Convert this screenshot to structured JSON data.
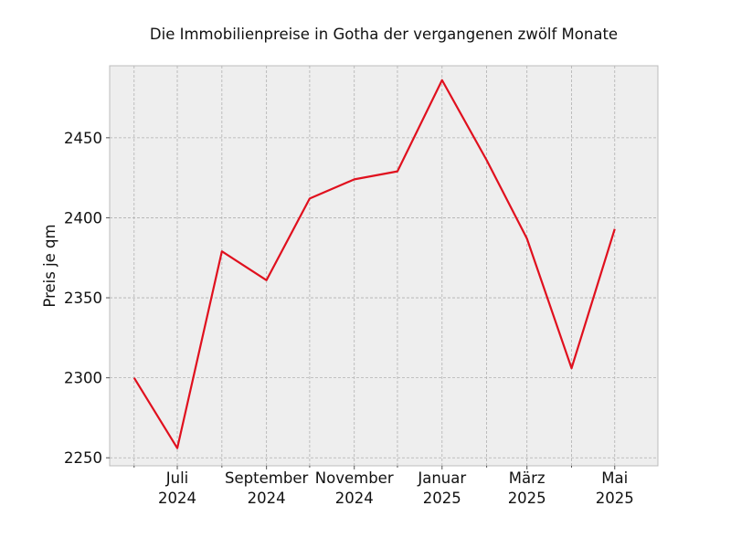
{
  "chart_data": {
    "type": "line",
    "title": "Die Immobilienpreise in Gotha der vergangenen zwölf Monate",
    "xlabel": "",
    "ylabel": "Preis je qm",
    "x": [
      "2024-06",
      "2024-07",
      "2024-08",
      "2024-09",
      "2024-10",
      "2024-11",
      "2024-12",
      "2025-01",
      "2025-02",
      "2025-03",
      "2025-04",
      "2025-05"
    ],
    "series": [
      {
        "values": [
          2300,
          2256,
          2379,
          2361,
          2412,
          2424,
          2429,
          2486,
          2436,
          2387,
          2306,
          2393
        ],
        "color": "#e0101e"
      }
    ],
    "xlim": [
      "2024-05-15",
      "2025-05-31"
    ],
    "ylim": [
      2245,
      2495
    ],
    "y_ticks": [
      2250,
      2300,
      2350,
      2400,
      2450
    ],
    "x_major_ticks": [
      {
        "x": "2024-07",
        "label": [
          "Juli",
          "2024"
        ]
      },
      {
        "x": "2024-09",
        "label": [
          "September",
          "2024"
        ]
      },
      {
        "x": "2024-11",
        "label": [
          "November",
          "2024"
        ]
      },
      {
        "x": "2025-01",
        "label": [
          "Januar",
          "2025"
        ]
      },
      {
        "x": "2025-03",
        "label": [
          "März",
          "2025"
        ]
      },
      {
        "x": "2025-05",
        "label": [
          "Mai",
          "2025"
        ]
      }
    ],
    "x_minor_ticks": [
      "2024-06",
      "2024-08",
      "2024-10",
      "2024-12",
      "2025-02",
      "2025-04"
    ],
    "grid": true,
    "background": "#eeeeee"
  }
}
